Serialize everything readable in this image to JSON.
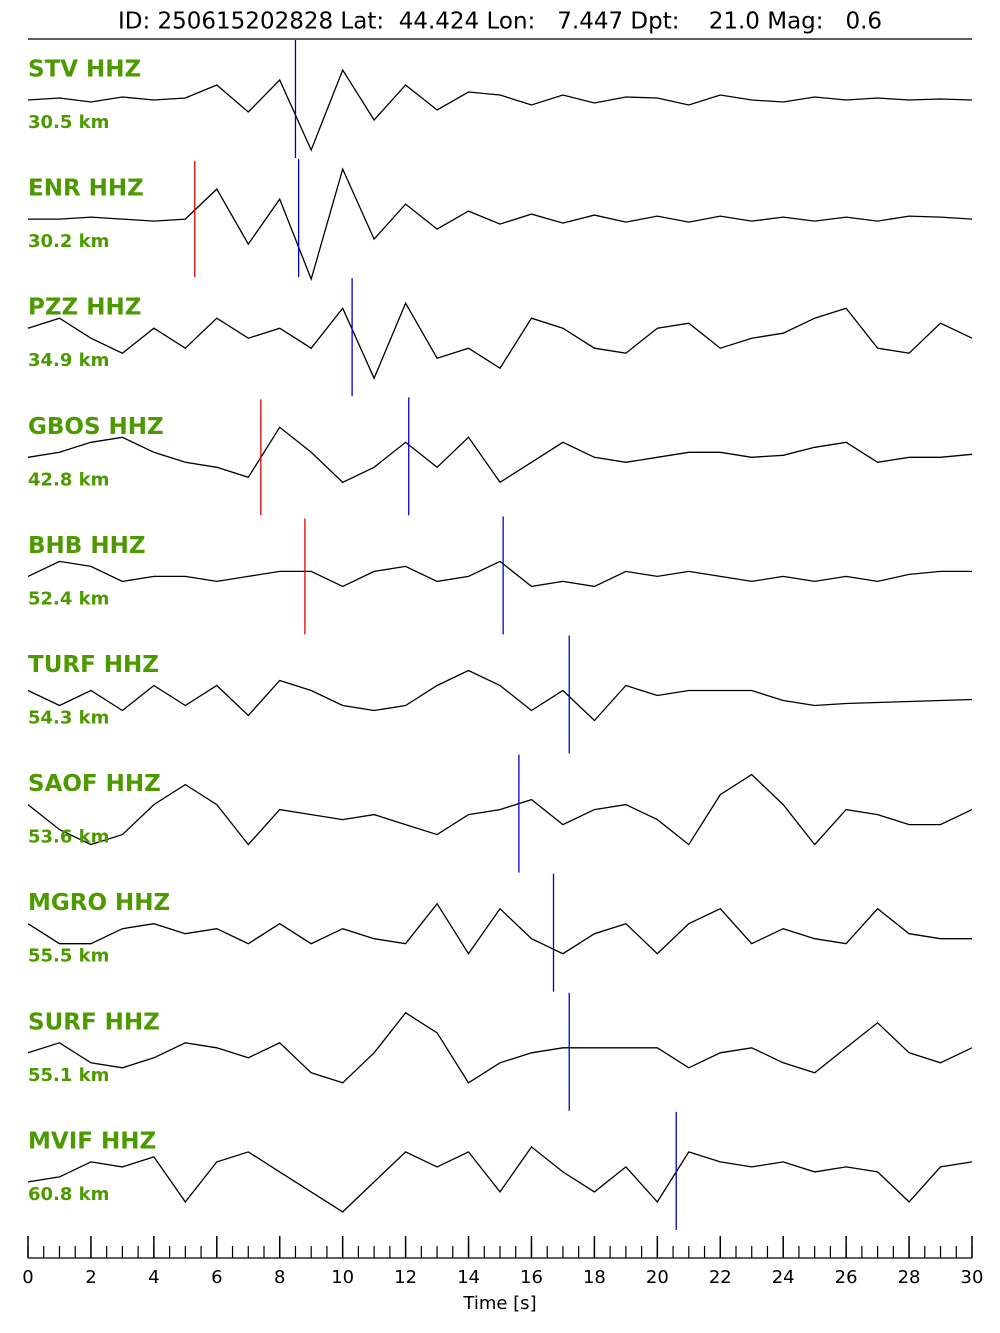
{
  "chart_data": {
    "type": "seismogram",
    "title": "ID: 250615202828 Lat:  44.424 Lon:   7.447 Dpt:    21.0 Mag:   0.6",
    "xlabel": "Time [s]",
    "xlim": [
      0,
      30
    ],
    "xticks": [
      0,
      2,
      4,
      6,
      8,
      10,
      12,
      14,
      16,
      18,
      20,
      22,
      24,
      26,
      28,
      30
    ],
    "xminorticks": [
      0,
      0.5,
      1,
      1.5,
      2,
      2.5,
      3,
      3.5,
      4,
      4.5,
      5,
      5.5,
      6,
      6.5,
      7,
      7.5,
      8,
      8.5,
      9,
      9.5,
      10,
      10.5,
      11,
      11.5,
      12,
      12.5,
      13,
      13.5,
      14,
      14.5,
      15,
      15.5,
      16,
      16.5,
      17,
      17.5,
      18,
      18.5,
      19,
      19.5,
      20,
      20.5,
      21,
      21.5,
      22,
      22.5,
      23,
      23.5,
      24,
      24.5,
      25,
      25.5,
      26,
      26.5,
      27,
      27.5,
      28,
      28.5,
      29,
      29.5,
      30
    ],
    "x": [
      0,
      1,
      2,
      3,
      4,
      5,
      6,
      7,
      8,
      9,
      10,
      11,
      12,
      13,
      14,
      15,
      16,
      17,
      18,
      19,
      20,
      21,
      22,
      23,
      24,
      25,
      26,
      27,
      28,
      29,
      30
    ],
    "label_color": "#4c9a00",
    "p_color": "#e00000",
    "s_color": "#0000cc",
    "series": [
      {
        "name": "STV HHZ",
        "distance": "30.5 km",
        "color": "#000000",
        "p_pick": null,
        "s_pick": 8.5,
        "values": [
          0,
          0.02,
          -0.02,
          0.03,
          0,
          0.02,
          0.15,
          -0.12,
          0.2,
          -0.5,
          0.3,
          -0.2,
          0.15,
          -0.1,
          0.08,
          0.05,
          -0.05,
          0.05,
          -0.03,
          0.03,
          0.02,
          -0.05,
          0.05,
          0,
          -0.02,
          0.03,
          0,
          0.02,
          0,
          0.01,
          0
        ]
      },
      {
        "name": "ENR HHZ",
        "distance": "30.2 km",
        "color": "#000000",
        "p_pick": 5.3,
        "s_pick": 8.6,
        "values": [
          0,
          0,
          0.02,
          0,
          -0.02,
          0,
          0.3,
          -0.25,
          0.2,
          -0.6,
          0.5,
          -0.2,
          0.15,
          -0.1,
          0.08,
          -0.05,
          0.05,
          -0.04,
          0.04,
          -0.03,
          0.03,
          -0.03,
          0.03,
          -0.02,
          0.02,
          -0.02,
          0.02,
          -0.02,
          0.03,
          0.02,
          0
        ]
      },
      {
        "name": "PZZ HHZ",
        "distance": "34.9 km",
        "color": "#000000",
        "p_pick": null,
        "s_pick": 10.3,
        "values": [
          0.1,
          0.2,
          0,
          -0.15,
          0.1,
          -0.1,
          0.2,
          0,
          0.1,
          -0.1,
          0.3,
          -0.4,
          0.35,
          -0.2,
          -0.1,
          -0.3,
          0.2,
          0.1,
          -0.1,
          -0.15,
          0.1,
          0.15,
          -0.1,
          0,
          0.05,
          0.2,
          0.3,
          -0.1,
          -0.15,
          0.15,
          0
        ]
      },
      {
        "name": "GBOS HHZ",
        "distance": "42.8 km",
        "color": "#000000",
        "p_pick": 7.4,
        "s_pick": 12.1,
        "values": [
          0,
          0.05,
          0.15,
          0.2,
          0.05,
          -0.05,
          -0.1,
          -0.2,
          0.3,
          0.05,
          -0.25,
          -0.1,
          0.15,
          -0.1,
          0.2,
          -0.25,
          -0.05,
          0.15,
          0,
          -0.05,
          0,
          0.05,
          0.05,
          0,
          0.02,
          0.1,
          0.15,
          -0.05,
          0,
          0,
          0.03
        ]
      },
      {
        "name": "BHB HHZ",
        "distance": "52.4 km",
        "color": "#000000",
        "p_pick": 8.8,
        "s_pick": 15.1,
        "values": [
          0,
          0.15,
          0.1,
          -0.05,
          0,
          0,
          -0.05,
          0,
          0.05,
          0.05,
          -0.1,
          0.05,
          0.1,
          -0.05,
          0,
          0.15,
          -0.1,
          -0.05,
          -0.1,
          0.05,
          0,
          0.05,
          0,
          -0.05,
          0,
          -0.05,
          0,
          -0.05,
          0.02,
          0.05,
          0.05
        ]
      },
      {
        "name": "TURF HHZ",
        "distance": "54.3 km",
        "color": "#000000",
        "p_pick": null,
        "s_pick": 17.2,
        "values": [
          0.05,
          -0.1,
          0.05,
          -0.15,
          0.1,
          -0.1,
          0.1,
          -0.2,
          0.15,
          0.05,
          -0.1,
          -0.15,
          -0.1,
          0.1,
          0.25,
          0.1,
          -0.15,
          0.05,
          -0.25,
          0.1,
          0,
          0.05,
          0.05,
          0.05,
          -0.05,
          -0.1,
          -0.08,
          -0.07,
          -0.06,
          -0.05,
          -0.04
        ]
      },
      {
        "name": "SAOF HHZ",
        "distance": "53.6 km",
        "color": "#000000",
        "p_pick": null,
        "s_pick": 15.6,
        "values": [
          0.1,
          -0.15,
          -0.3,
          -0.2,
          0.1,
          0.3,
          0.1,
          -0.3,
          0.05,
          0,
          -0.05,
          0,
          -0.1,
          -0.2,
          0,
          0.05,
          0.15,
          -0.1,
          0.05,
          0.1,
          -0.05,
          -0.3,
          0.2,
          0.4,
          0.1,
          -0.3,
          0.05,
          0,
          -0.1,
          -0.1,
          0.05
        ]
      },
      {
        "name": "MGRO HHZ",
        "distance": "55.5 km",
        "color": "#000000",
        "p_pick": null,
        "s_pick": 16.7,
        "values": [
          0.1,
          -0.1,
          -0.1,
          0.05,
          0.1,
          0,
          0.05,
          -0.1,
          0.1,
          -0.1,
          0.05,
          -0.05,
          -0.1,
          0.3,
          -0.2,
          0.25,
          -0.05,
          -0.2,
          0,
          0.1,
          -0.2,
          0.1,
          0.25,
          -0.1,
          0.05,
          -0.05,
          -0.1,
          0.25,
          0,
          -0.05,
          -0.05
        ]
      },
      {
        "name": "SURF HHZ",
        "distance": "55.1 km",
        "color": "#000000",
        "p_pick": null,
        "s_pick": 17.2,
        "values": [
          0,
          0.1,
          -0.1,
          -0.15,
          -0.05,
          0.1,
          0.05,
          -0.05,
          0.1,
          -0.2,
          -0.3,
          0,
          0.4,
          0.2,
          -0.3,
          -0.1,
          0,
          0.05,
          0.05,
          0.05,
          0.05,
          -0.15,
          0,
          0.05,
          -0.1,
          -0.2,
          0.05,
          0.3,
          0,
          -0.1,
          0.05
        ]
      },
      {
        "name": "MVIF HHZ",
        "distance": "60.8 km",
        "color": "#000000",
        "p_pick": null,
        "s_pick": 20.6,
        "values": [
          -0.1,
          -0.05,
          0.1,
          0.05,
          0.15,
          -0.3,
          0.1,
          0.2,
          0,
          -0.2,
          -0.4,
          -0.1,
          0.2,
          0.05,
          0.2,
          -0.2,
          0.25,
          0,
          -0.2,
          0.05,
          -0.3,
          0.2,
          0.1,
          0.05,
          0.1,
          0,
          0.05,
          0,
          -0.3,
          0.05,
          0.1
        ]
      }
    ]
  }
}
